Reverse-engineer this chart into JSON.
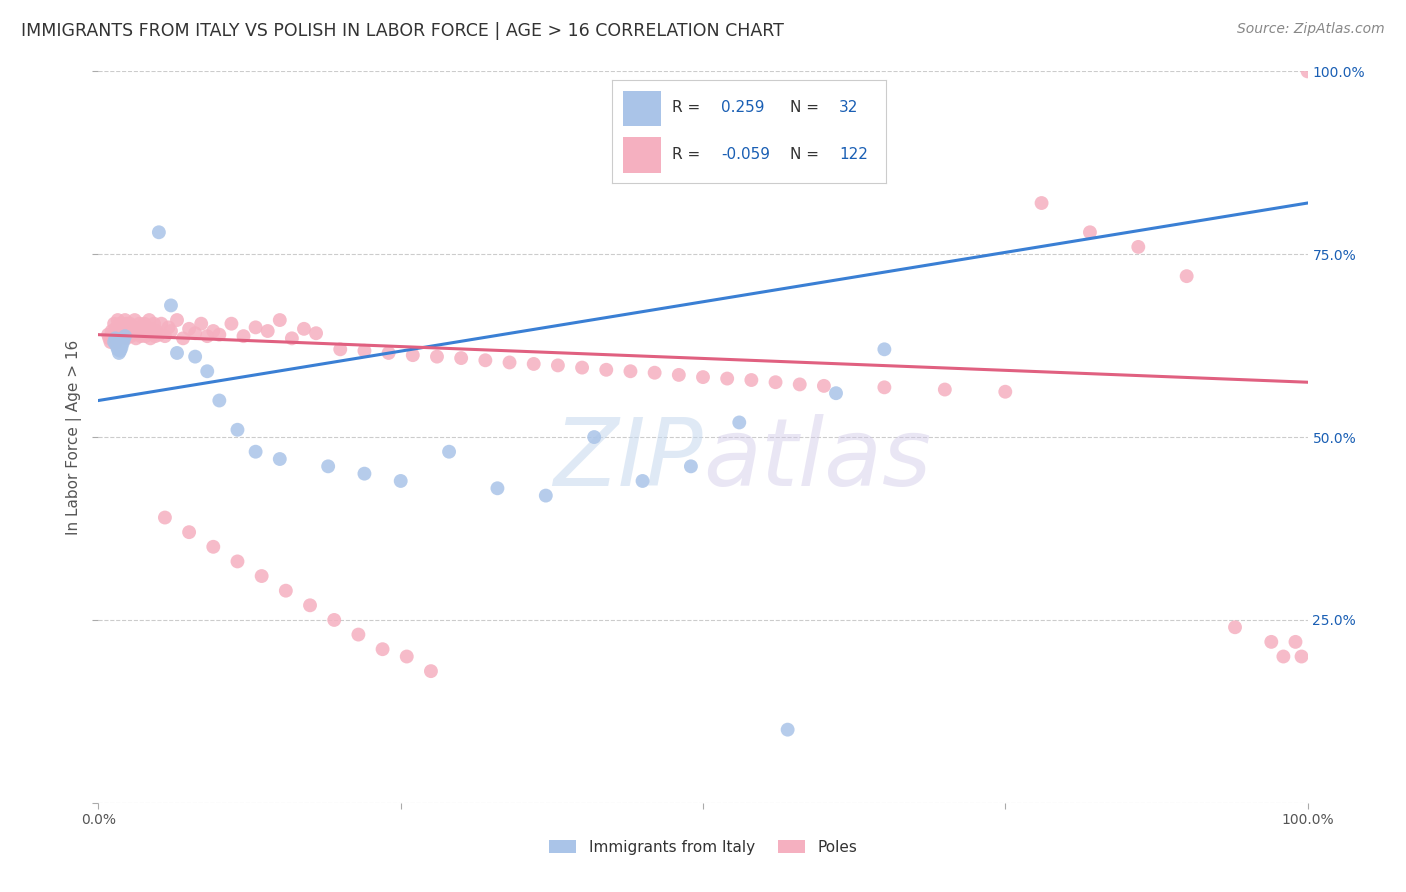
{
  "title": "IMMIGRANTS FROM ITALY VS POLISH IN LABOR FORCE | AGE > 16 CORRELATION CHART",
  "source": "Source: ZipAtlas.com",
  "ylabel": "In Labor Force | Age > 16",
  "watermark_text": "ZIPatlas",
  "legend_italy_r": "0.259",
  "legend_italy_n": "32",
  "legend_poles_r": "-0.059",
  "legend_poles_n": "122",
  "italy_color": "#aac4e8",
  "poles_color": "#f5b0c0",
  "italy_line_color": "#3a7fd4",
  "poles_line_color": "#e06080",
  "background_color": "#ffffff",
  "grid_color": "#cccccc",
  "title_color": "#333333",
  "source_color": "#888888",
  "legend_r_color": "#1a5fb4",
  "axis_label_color": "#555555",
  "xmin": 0.0,
  "xmax": 1.0,
  "ymin": 0.0,
  "ymax": 1.0,
  "italy_x": [
    0.013,
    0.014,
    0.015,
    0.016,
    0.017,
    0.018,
    0.019,
    0.02,
    0.021,
    0.022,
    0.05,
    0.06,
    0.065,
    0.08,
    0.09,
    0.1,
    0.115,
    0.13,
    0.15,
    0.19,
    0.22,
    0.25,
    0.29,
    0.33,
    0.37,
    0.41,
    0.45,
    0.49,
    0.53,
    0.57,
    0.61,
    0.65
  ],
  "italy_y": [
    0.63,
    0.635,
    0.625,
    0.62,
    0.615,
    0.618,
    0.622,
    0.628,
    0.633,
    0.638,
    0.78,
    0.68,
    0.615,
    0.61,
    0.59,
    0.55,
    0.51,
    0.48,
    0.47,
    0.46,
    0.45,
    0.44,
    0.48,
    0.43,
    0.42,
    0.5,
    0.44,
    0.46,
    0.52,
    0.1,
    0.56,
    0.62
  ],
  "poles_x": [
    0.008,
    0.009,
    0.01,
    0.011,
    0.012,
    0.013,
    0.013,
    0.014,
    0.014,
    0.015,
    0.015,
    0.016,
    0.016,
    0.017,
    0.017,
    0.018,
    0.018,
    0.019,
    0.019,
    0.02,
    0.02,
    0.021,
    0.021,
    0.022,
    0.022,
    0.023,
    0.023,
    0.024,
    0.024,
    0.025,
    0.025,
    0.026,
    0.026,
    0.027,
    0.028,
    0.029,
    0.03,
    0.031,
    0.032,
    0.033,
    0.034,
    0.035,
    0.036,
    0.037,
    0.038,
    0.039,
    0.04,
    0.041,
    0.042,
    0.043,
    0.044,
    0.045,
    0.046,
    0.047,
    0.048,
    0.05,
    0.052,
    0.055,
    0.058,
    0.06,
    0.065,
    0.07,
    0.075,
    0.08,
    0.085,
    0.09,
    0.095,
    0.1,
    0.11,
    0.12,
    0.13,
    0.14,
    0.15,
    0.16,
    0.17,
    0.18,
    0.2,
    0.22,
    0.24,
    0.26,
    0.28,
    0.3,
    0.32,
    0.34,
    0.36,
    0.38,
    0.4,
    0.42,
    0.44,
    0.46,
    0.48,
    0.5,
    0.52,
    0.54,
    0.56,
    0.58,
    0.6,
    0.65,
    0.7,
    0.75,
    0.78,
    0.82,
    0.86,
    0.9,
    0.94,
    0.97,
    0.98,
    0.99,
    0.995,
    1.0,
    0.055,
    0.075,
    0.095,
    0.115,
    0.135,
    0.155,
    0.175,
    0.195,
    0.215,
    0.235,
    0.255,
    0.275
  ],
  "poles_y": [
    0.64,
    0.635,
    0.63,
    0.645,
    0.638,
    0.632,
    0.655,
    0.628,
    0.642,
    0.638,
    0.65,
    0.645,
    0.66,
    0.635,
    0.648,
    0.642,
    0.655,
    0.638,
    0.645,
    0.64,
    0.655,
    0.638,
    0.65,
    0.645,
    0.66,
    0.635,
    0.648,
    0.642,
    0.655,
    0.638,
    0.645,
    0.64,
    0.655,
    0.638,
    0.65,
    0.645,
    0.66,
    0.635,
    0.648,
    0.642,
    0.655,
    0.638,
    0.645,
    0.64,
    0.655,
    0.638,
    0.65,
    0.645,
    0.66,
    0.635,
    0.648,
    0.642,
    0.655,
    0.638,
    0.645,
    0.64,
    0.655,
    0.638,
    0.65,
    0.645,
    0.66,
    0.635,
    0.648,
    0.642,
    0.655,
    0.638,
    0.645,
    0.64,
    0.655,
    0.638,
    0.65,
    0.645,
    0.66,
    0.635,
    0.648,
    0.642,
    0.62,
    0.618,
    0.615,
    0.612,
    0.61,
    0.608,
    0.605,
    0.602,
    0.6,
    0.598,
    0.595,
    0.592,
    0.59,
    0.588,
    0.585,
    0.582,
    0.58,
    0.578,
    0.575,
    0.572,
    0.57,
    0.568,
    0.565,
    0.562,
    0.82,
    0.78,
    0.76,
    0.72,
    0.24,
    0.22,
    0.2,
    0.22,
    0.2,
    1.0,
    0.39,
    0.37,
    0.35,
    0.33,
    0.31,
    0.29,
    0.27,
    0.25,
    0.23,
    0.21,
    0.2,
    0.18
  ]
}
